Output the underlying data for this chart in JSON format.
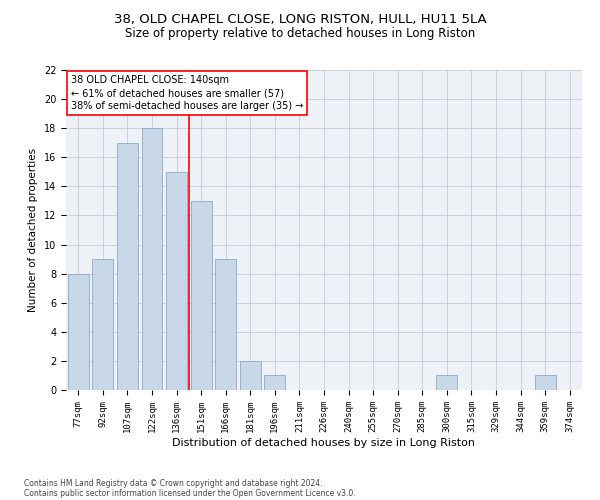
{
  "title_line1": "38, OLD CHAPEL CLOSE, LONG RISTON, HULL, HU11 5LA",
  "title_line2": "Size of property relative to detached houses in Long Riston",
  "xlabel": "Distribution of detached houses by size in Long Riston",
  "ylabel": "Number of detached properties",
  "categories": [
    "77sqm",
    "92sqm",
    "107sqm",
    "122sqm",
    "136sqm",
    "151sqm",
    "166sqm",
    "181sqm",
    "196sqm",
    "211sqm",
    "226sqm",
    "240sqm",
    "255sqm",
    "270sqm",
    "285sqm",
    "300sqm",
    "315sqm",
    "329sqm",
    "344sqm",
    "359sqm",
    "374sqm"
  ],
  "values": [
    8,
    9,
    17,
    18,
    15,
    13,
    9,
    2,
    1,
    0,
    0,
    0,
    0,
    0,
    0,
    1,
    0,
    0,
    0,
    1,
    0
  ],
  "bar_color": "#c8d8e8",
  "bar_edge_color": "#8aaac8",
  "reference_line_color": "red",
  "annotation_line1": "38 OLD CHAPEL CLOSE: 140sqm",
  "annotation_line2": "← 61% of detached houses are smaller (57)",
  "annotation_line3": "38% of semi-detached houses are larger (35) →",
  "ylim": [
    0,
    22
  ],
  "yticks": [
    0,
    2,
    4,
    6,
    8,
    10,
    12,
    14,
    16,
    18,
    20,
    22
  ],
  "footer_line1": "Contains HM Land Registry data © Crown copyright and database right 2024.",
  "footer_line2": "Contains public sector information licensed under the Open Government Licence v3.0.",
  "bg_color": "#eef2f7",
  "grid_color": "#c0ccd8",
  "title1_fontsize": 9.5,
  "title2_fontsize": 8.5,
  "xlabel_fontsize": 8,
  "ylabel_fontsize": 7.5,
  "tick_fontsize": 6.5,
  "annot_fontsize": 7,
  "footer_fontsize": 5.5
}
